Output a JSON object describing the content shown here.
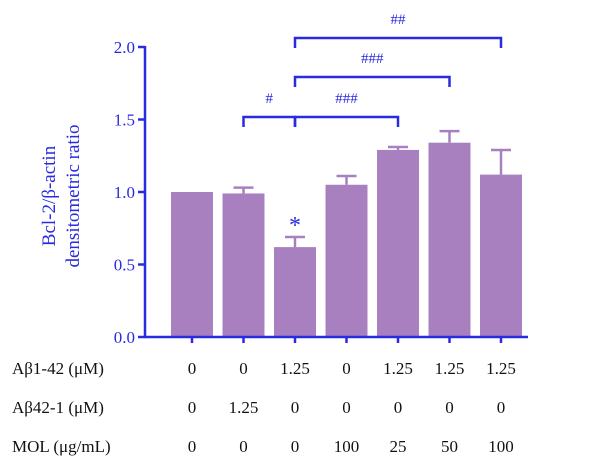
{
  "colors": {
    "bar_fill": "#a980bf",
    "error_bar": "#a980bf",
    "axis": "#2a2ae0",
    "bracket": "#2a2ae0",
    "table_text": "#111111"
  },
  "chart_data": {
    "type": "bar",
    "ylabel_lines": [
      "Bcl-2/β-actin",
      "densitometric ratio"
    ],
    "ylim": [
      0,
      2.0
    ],
    "yticks": [
      "0.0",
      "0.5",
      "1.0",
      "1.5",
      "2.0"
    ],
    "values": [
      1.0,
      0.99,
      0.62,
      1.05,
      1.29,
      1.34,
      1.12
    ],
    "errors": [
      0.0,
      0.04,
      0.07,
      0.06,
      0.02,
      0.08,
      0.17
    ],
    "bar_annotations": [
      "",
      "",
      "*",
      "",
      "",
      "",
      ""
    ],
    "conditions": [
      {
        "label": "Aβ1-42 (μM)",
        "values": [
          "0",
          "0",
          "1.25",
          "0",
          "1.25",
          "1.25",
          "1.25"
        ]
      },
      {
        "label": "Aβ42-1 (μM)",
        "values": [
          "0",
          "1.25",
          "0",
          "0",
          "0",
          "0",
          "0"
        ]
      },
      {
        "label": "MOL (μg/mL)",
        "values": [
          "0",
          "0",
          "0",
          "100",
          "25",
          "50",
          "100"
        ]
      }
    ],
    "significance": [
      {
        "from": 1,
        "to": 2,
        "label": "#"
      },
      {
        "from": 2,
        "to": 4,
        "label": "###"
      },
      {
        "from": 2,
        "to": 5,
        "label": "###"
      },
      {
        "from": 2,
        "to": 6,
        "label": "##"
      }
    ],
    "grid": false
  }
}
